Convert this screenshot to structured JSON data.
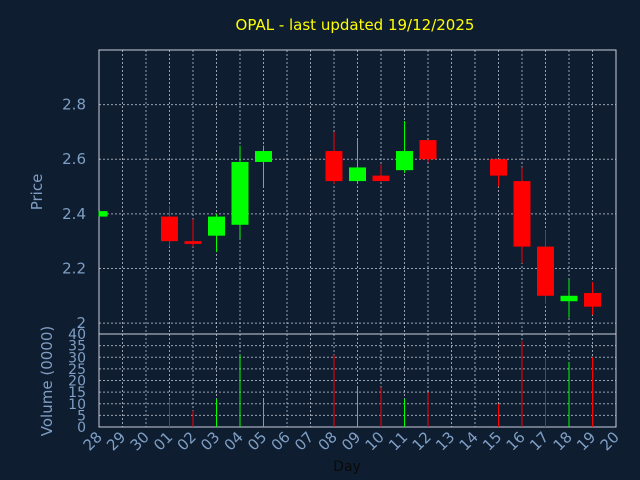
{
  "chart_data": {
    "type": "candlestick",
    "title": "OPAL - last updated 19/12/2025",
    "xlabel": "Day",
    "price_panel": {
      "ylabel": "Price",
      "ylim": [
        1.96,
        3.0
      ],
      "yticks": [
        2.0,
        2.2,
        2.4,
        2.6,
        2.8
      ],
      "ytick_labels": [
        "2",
        "2.2",
        "2.4",
        "2.6",
        "2.8"
      ]
    },
    "volume_panel": {
      "ylabel": "Volume (0000)",
      "ylim": [
        0,
        40
      ],
      "yticks": [
        0,
        5,
        10,
        15,
        20,
        25,
        30,
        35,
        40
      ],
      "ytick_labels": [
        "0",
        "5",
        "10",
        "15",
        "20",
        "25",
        "30",
        "35",
        "40"
      ]
    },
    "x_tick_labels": [
      "28",
      "29",
      "30",
      "01",
      "02",
      "03",
      "04",
      "05",
      "06",
      "07",
      "08",
      "09",
      "10",
      "11",
      "12",
      "13",
      "14",
      "15",
      "16",
      "17",
      "18",
      "19",
      "20"
    ],
    "colors": {
      "up": "#00ff00",
      "down": "#ff0000",
      "title": "#ffff00",
      "background": "#0f1d30"
    },
    "candles": [
      {
        "day": "28",
        "open": 2.39,
        "high": 2.41,
        "low": 2.39,
        "close": 2.41,
        "volume": 0
      },
      {
        "day": "01",
        "open": 2.39,
        "high": 2.43,
        "low": 2.28,
        "close": 2.3,
        "volume": 12
      },
      {
        "day": "02",
        "open": 2.3,
        "high": 2.38,
        "low": 2.28,
        "close": 2.29,
        "volume": 7
      },
      {
        "day": "03",
        "open": 2.32,
        "high": 2.4,
        "low": 2.26,
        "close": 2.39,
        "volume": 12
      },
      {
        "day": "04",
        "open": 2.36,
        "high": 2.65,
        "low": 2.31,
        "close": 2.59,
        "volume": 31
      },
      {
        "day": "05",
        "open": 2.59,
        "high": 2.65,
        "low": 2.5,
        "close": 2.63,
        "volume": 12
      },
      {
        "day": "08",
        "open": 2.63,
        "high": 2.7,
        "low": 2.51,
        "close": 2.52,
        "volume": 31
      },
      {
        "day": "09",
        "open": 2.52,
        "high": 2.67,
        "low": 2.51,
        "close": 2.57,
        "volume": 17
      },
      {
        "day": "10",
        "open": 2.54,
        "high": 2.58,
        "low": 2.52,
        "close": 2.52,
        "volume": 17
      },
      {
        "day": "11",
        "open": 2.56,
        "high": 2.74,
        "low": 2.55,
        "close": 2.63,
        "volume": 12
      },
      {
        "day": "12",
        "open": 2.67,
        "high": 2.67,
        "low": 2.59,
        "close": 2.6,
        "volume": 15
      },
      {
        "day": "15",
        "open": 2.6,
        "high": 2.6,
        "low": 2.5,
        "close": 2.54,
        "volume": 10
      },
      {
        "day": "16",
        "open": 2.52,
        "high": 2.57,
        "low": 2.22,
        "close": 2.28,
        "volume": 37
      },
      {
        "day": "17",
        "open": 2.28,
        "high": 2.34,
        "low": 2.07,
        "close": 2.1,
        "volume": 30
      },
      {
        "day": "18",
        "open": 2.08,
        "high": 2.16,
        "low": 2.02,
        "close": 2.1,
        "volume": 28
      },
      {
        "day": "19",
        "open": 2.11,
        "high": 2.15,
        "low": 2.03,
        "close": 2.06,
        "volume": 30
      }
    ]
  }
}
